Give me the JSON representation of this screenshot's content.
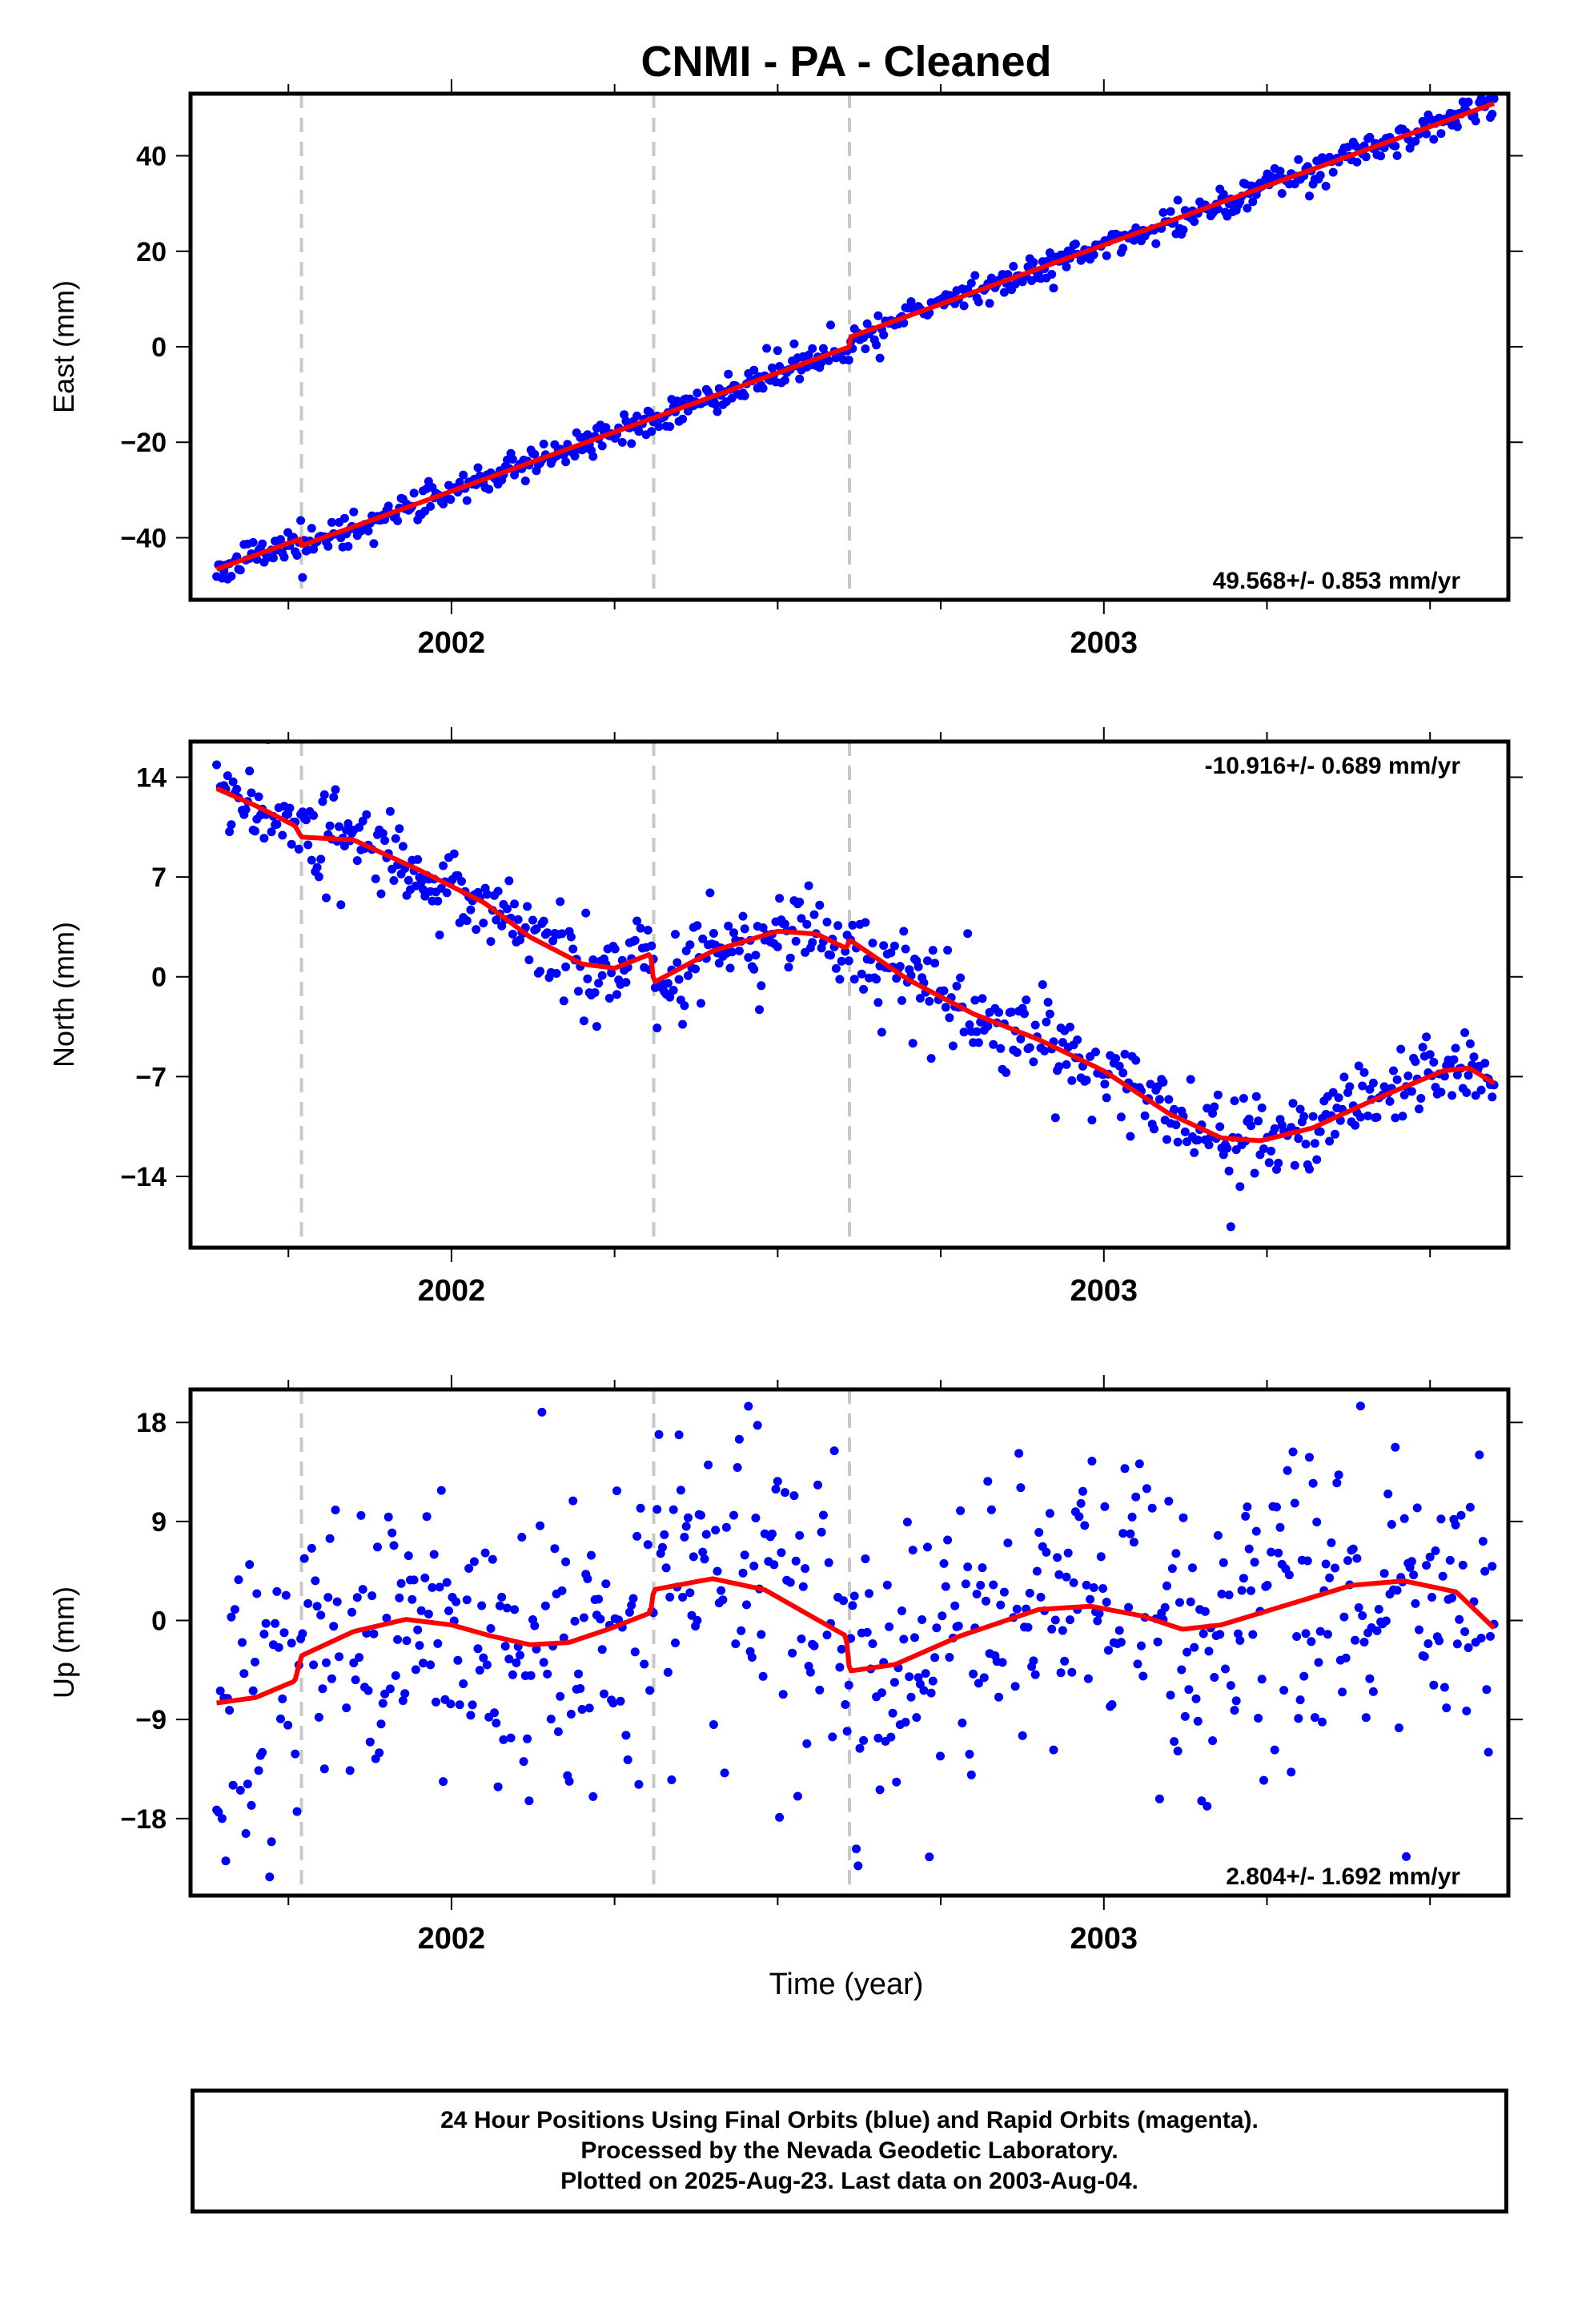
{
  "title": "CNMI  - PA - Cleaned",
  "xlabel": "Time (year)",
  "footer": {
    "line1": "24 Hour Positions Using Final Orbits (blue) and Rapid Orbits (magenta).",
    "line2": "Processed by the Nevada Geodetic Laboratory.",
    "line3": "Plotted on 2025-Aug-23. Last data on 2003-Aug-04."
  },
  "colors": {
    "points": "#0000ff",
    "fit": "#ff0000",
    "breaks": "#c8c8c8",
    "frame": "#000000"
  },
  "chart_data": [
    {
      "type": "scatter",
      "panel": "east",
      "ylabel": "East (mm)",
      "rate": "49.568+/- 0.853 mm/yr",
      "rate_position": "bottom-right",
      "xlim": [
        2001.6,
        2003.62
      ],
      "ylim": [
        -53,
        53
      ],
      "yticks": [
        -40,
        -20,
        0,
        20,
        40
      ],
      "xticks": [
        2002,
        2003
      ],
      "break_lines": [
        2001.77,
        2002.31,
        2002.61
      ],
      "n_points": 700,
      "seed": 11,
      "noise": 1.6,
      "model": {
        "base": -46.6,
        "rate": 49.568,
        "offsets": [
          [
            2001.77,
            -1.5
          ],
          [
            2002.61,
            2.0
          ]
        ],
        "seasonal": [],
        "t0": 2001.64,
        "t1": 2003.6
      }
    },
    {
      "type": "scatter",
      "panel": "north",
      "ylabel": "North (mm)",
      "rate": "-10.916+/- 0.689 mm/yr",
      "rate_position": "top-right",
      "xlim": [
        2001.6,
        2003.62
      ],
      "ylim": [
        -19,
        16.5
      ],
      "yticks": [
        -14,
        -7,
        0,
        7,
        14
      ],
      "xticks": [
        2002,
        2003
      ],
      "break_lines": [
        2001.77,
        2002.31,
        2002.61
      ],
      "n_points": 700,
      "seed": 22,
      "noise": 1.4,
      "fit_points": [
        [
          2001.64,
          13.2
        ],
        [
          2001.7,
          12.0
        ],
        [
          2001.76,
          10.6
        ],
        [
          2001.77,
          9.8
        ],
        [
          2001.85,
          9.6
        ],
        [
          2001.95,
          7.5
        ],
        [
          2002.05,
          5.2
        ],
        [
          2002.12,
          2.8
        ],
        [
          2002.2,
          0.9
        ],
        [
          2002.25,
          0.6
        ],
        [
          2002.305,
          1.6
        ],
        [
          2002.31,
          -0.4
        ],
        [
          2002.4,
          1.8
        ],
        [
          2002.5,
          3.2
        ],
        [
          2002.56,
          3.0
        ],
        [
          2002.605,
          2.0
        ],
        [
          2002.61,
          2.6
        ],
        [
          2002.7,
          -0.2
        ],
        [
          2002.8,
          -2.6
        ],
        [
          2002.9,
          -4.4
        ],
        [
          2003.0,
          -6.6
        ],
        [
          2003.1,
          -9.6
        ],
        [
          2003.18,
          -11.3
        ],
        [
          2003.24,
          -11.5
        ],
        [
          2003.32,
          -10.6
        ],
        [
          2003.42,
          -8.5
        ],
        [
          2003.52,
          -6.6
        ],
        [
          2003.56,
          -6.4
        ],
        [
          2003.6,
          -7.5
        ]
      ]
    },
    {
      "type": "scatter",
      "panel": "up",
      "ylabel": "Up (mm)",
      "rate": "2.804+/- 1.692 mm/yr",
      "rate_position": "bottom-right",
      "xlim": [
        2001.6,
        2003.62
      ],
      "ylim": [
        -25,
        21
      ],
      "yticks": [
        -18,
        -9,
        0,
        9,
        18
      ],
      "xticks": [
        2002,
        2003
      ],
      "break_lines": [
        2001.77,
        2002.31,
        2002.61
      ],
      "n_points": 700,
      "seed": 33,
      "noise": 7.0,
      "fit_points": [
        [
          2001.64,
          -7.5
        ],
        [
          2001.7,
          -7.0
        ],
        [
          2001.76,
          -5.5
        ],
        [
          2001.77,
          -3.2
        ],
        [
          2001.85,
          -1.0
        ],
        [
          2001.93,
          0.1
        ],
        [
          2002.0,
          -0.4
        ],
        [
          2002.06,
          -1.4
        ],
        [
          2002.12,
          -2.2
        ],
        [
          2002.18,
          -2.0
        ],
        [
          2002.24,
          -0.8
        ],
        [
          2002.305,
          0.7
        ],
        [
          2002.31,
          2.8
        ],
        [
          2002.4,
          3.8
        ],
        [
          2002.48,
          2.8
        ],
        [
          2002.56,
          0.1
        ],
        [
          2002.605,
          -1.4
        ],
        [
          2002.61,
          -4.6
        ],
        [
          2002.68,
          -4.0
        ],
        [
          2002.78,
          -1.4
        ],
        [
          2002.9,
          1.0
        ],
        [
          2002.98,
          1.3
        ],
        [
          2003.06,
          0.4
        ],
        [
          2003.12,
          -0.8
        ],
        [
          2003.18,
          -0.4
        ],
        [
          2003.28,
          1.4
        ],
        [
          2003.38,
          3.2
        ],
        [
          2003.46,
          3.6
        ],
        [
          2003.54,
          2.6
        ],
        [
          2003.6,
          -0.8
        ]
      ]
    }
  ]
}
